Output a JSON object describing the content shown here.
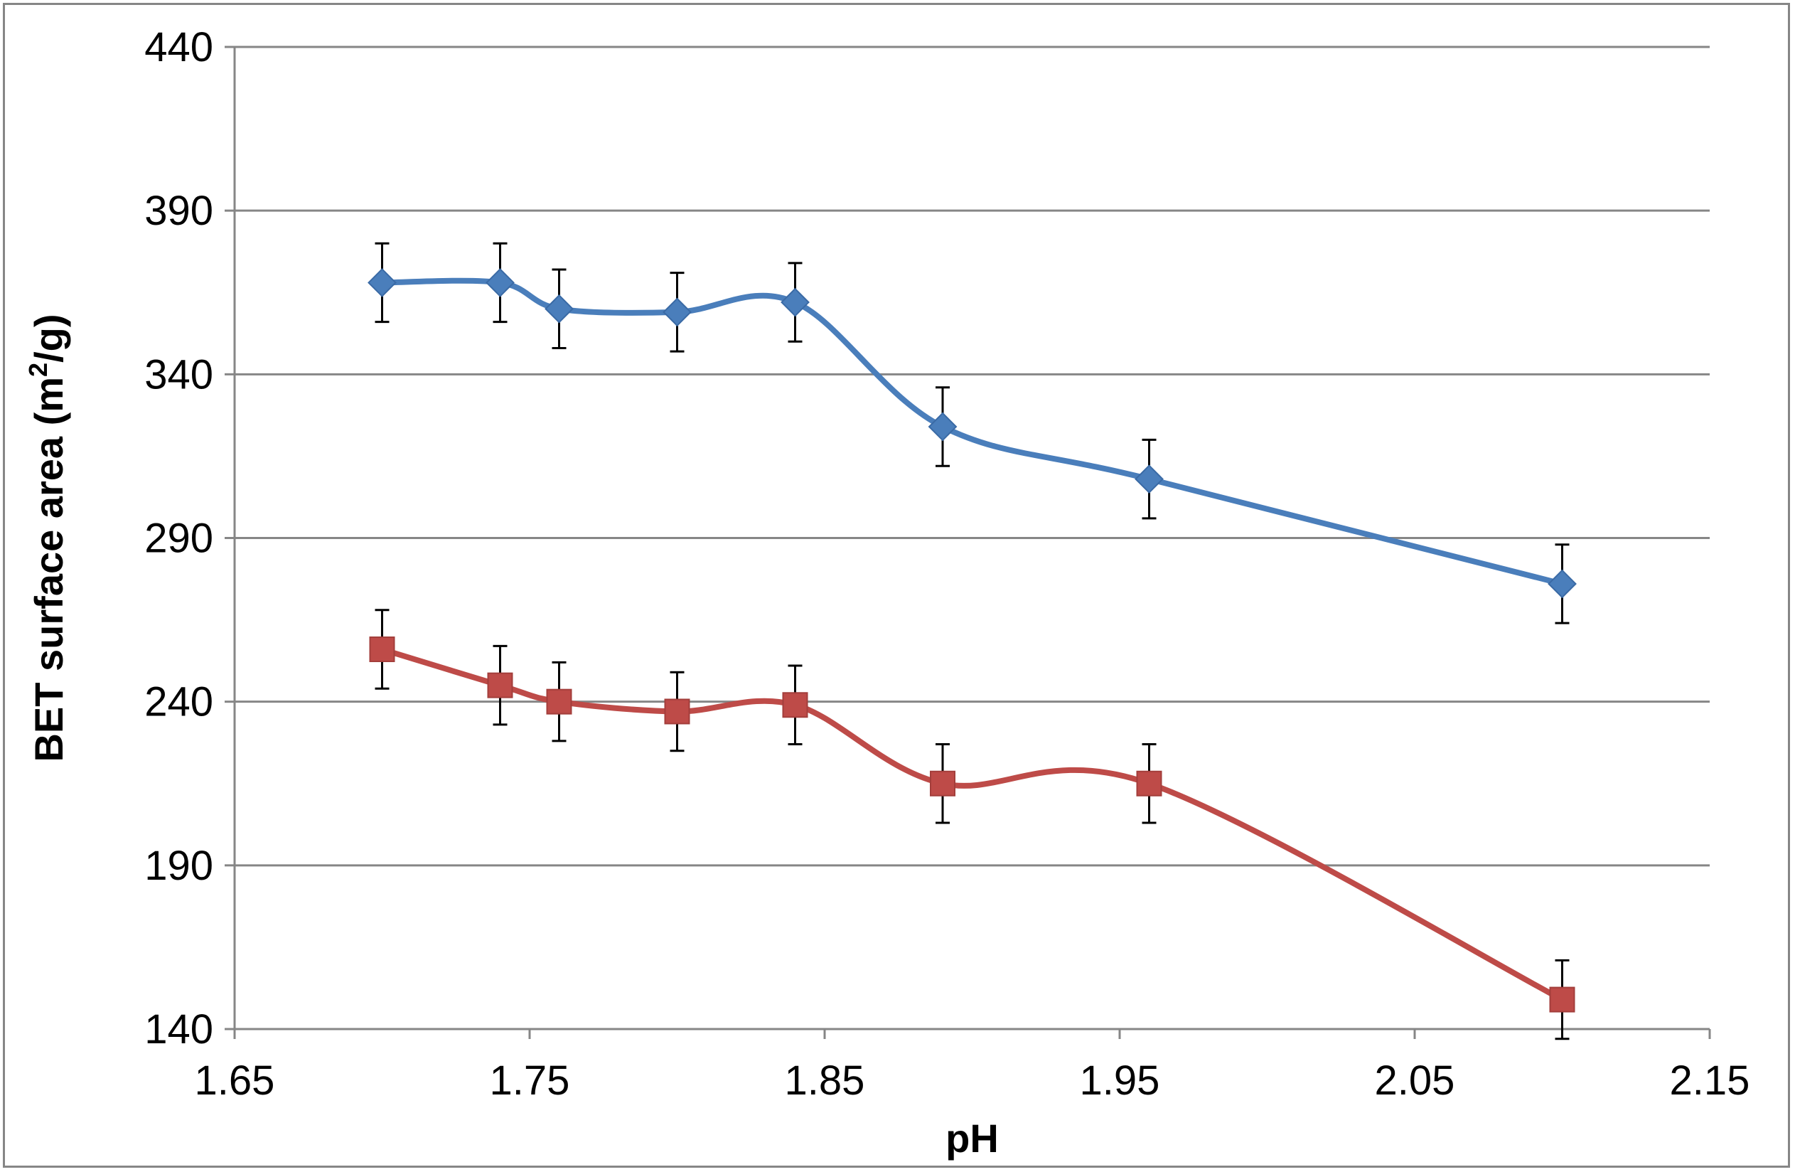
{
  "chart_data": {
    "type": "line",
    "title": "",
    "xlabel": "pH",
    "ylabel_main": "BET surface area (m",
    "ylabel_sup": "2",
    "ylabel_tail": "/g)",
    "xlim": [
      1.65,
      2.15
    ],
    "ylim": [
      140,
      440
    ],
    "x_ticks": [
      1.65,
      1.75,
      1.85,
      1.95,
      2.05,
      2.15
    ],
    "x_tick_labels": [
      "1.65",
      "1.75",
      "1.85",
      "1.95",
      "2.05",
      "2.15"
    ],
    "y_ticks": [
      140,
      190,
      240,
      290,
      340,
      390,
      440
    ],
    "y_tick_labels": [
      "140",
      "190",
      "240",
      "290",
      "340",
      "390",
      "440"
    ],
    "grid": "horizontal",
    "legend": "none",
    "series": [
      {
        "color": "#4a7ebb",
        "marker": "diamond",
        "x": [
          1.7,
          1.74,
          1.76,
          1.8,
          1.84,
          1.89,
          1.96,
          2.1
        ],
        "y": [
          368,
          368,
          360,
          359,
          362,
          324,
          308,
          276
        ],
        "err": [
          12,
          12,
          12,
          12,
          12,
          12,
          12,
          12
        ]
      },
      {
        "color": "#be4b48",
        "marker": "square",
        "x": [
          1.7,
          1.74,
          1.76,
          1.8,
          1.84,
          1.89,
          1.96,
          2.1
        ],
        "y": [
          256,
          245,
          240,
          237,
          239,
          215,
          215,
          149
        ],
        "err": [
          12,
          12,
          12,
          12,
          12,
          12,
          12,
          12
        ]
      }
    ]
  }
}
